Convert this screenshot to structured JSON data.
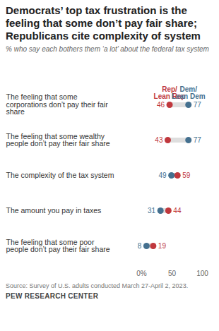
{
  "chart_data": {
    "type": "dot",
    "title": "Democrats’ top tax frustration is the feeling that some don’t pay fair share; Republicans cite complexity of system",
    "subtitle": "% who say each bothers them ‘a lot’ about the federal tax system",
    "categories": [
      "The feeling that some corporations don’t pay their fair share",
      "The feeling that some wealthy people don’t pay their fair share",
      "The complexity of the tax system",
      "The amount you pay in taxes",
      "The feeling that some poor people don’t pay their fair share"
    ],
    "series": [
      {
        "name": "Rep/Lean Rep",
        "color": "#c0383d",
        "values": [
          46,
          43,
          59,
          44,
          19
        ]
      },
      {
        "name": "Dem/Lean Dem",
        "color": "#44708f",
        "values": [
          77,
          77,
          49,
          31,
          8
        ]
      }
    ],
    "xlim": [
      0,
      100
    ],
    "xticks": [
      {
        "value": 0,
        "label": "0%"
      },
      50,
      100
    ],
    "orientation": "horizontal",
    "data_labels": true,
    "grid": false,
    "legend": "top",
    "source": "Source: Survey of U.S. adults conducted March 27-April 2, 2023.",
    "credit": "PEW RESEARCH CENTER"
  }
}
